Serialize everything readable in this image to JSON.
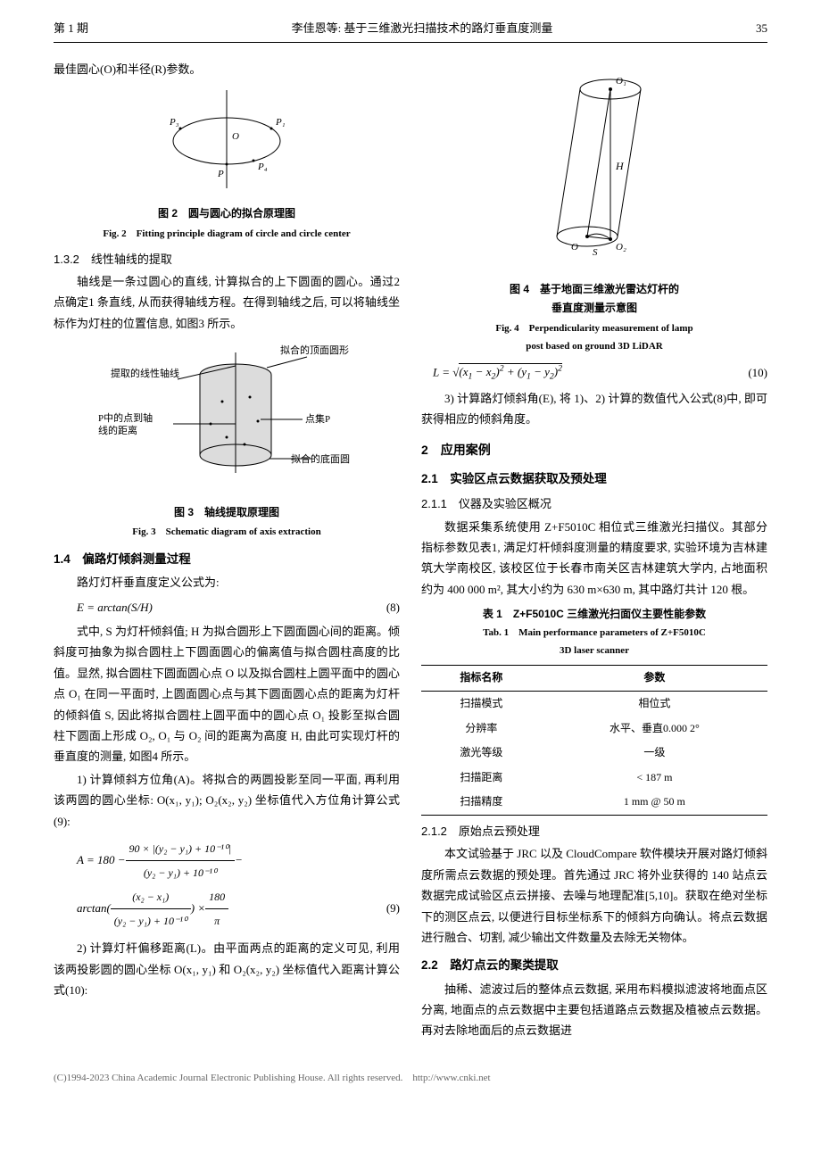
{
  "header": {
    "issue": "第 1 期",
    "center": "李佳恩等: 基于三维激光扫描技术的路灯垂直度测量",
    "page": "35"
  },
  "left": {
    "p_intro": "最佳圆心(O)和半径(R)参数。",
    "fig2": {
      "caption_cn": "图 2　圆与圆心的拟合原理图",
      "caption_en": "Fig. 2　Fitting principle diagram of circle and circle center",
      "labels": {
        "p3": "P₃",
        "p1": "P₁",
        "o": "O",
        "p": "P",
        "p4": "P₄"
      },
      "style": {
        "stroke": "#000000",
        "fill": "#ffffff",
        "stroke_width": 1,
        "fontsize": 11
      }
    },
    "s132_title": "1.3.2　线性轴线的提取",
    "s132_body": "轴线是一条过圆心的直线, 计算拟合的上下圆面的圆心。通过2 点确定1 条直线, 从而获得轴线方程。在得到轴线之后, 可以将轴线坐标作为灯柱的位置信息, 如图3 所示。",
    "fig3": {
      "caption_cn": "图 3　轴线提取原理图",
      "caption_en": "Fig. 3　Schematic diagram of axis extraction",
      "labels": {
        "axis_line": "提取的线性轴线",
        "top_circle": "拟合的顶面圆形",
        "p_dist": "P中的点到轴\n线的距离",
        "pointset": "点集P",
        "bottom_circle": "拟合的底面圆"
      },
      "style": {
        "cylinder_fill": "#dcdcdc",
        "stroke": "#000000",
        "stroke_width": 1,
        "fontsize": 11
      }
    },
    "s14_title": "1.4　偏路灯倾斜测量过程",
    "s14_p0": "路灯灯杆垂直度定义公式为:",
    "eq8_lhs": "E = arctan(S/H)",
    "eq8_num": "(8)",
    "s14_p1": "式中, S 为灯杆倾斜值; H 为拟合圆形上下圆面圆心间的距离。倾斜度可抽象为拟合圆柱上下圆面圆心的偏离值与拟合圆柱高度的比值。显然, 拟合圆柱下圆面圆心点 O 以及拟合圆柱上圆平面中的圆心点 O₁ 在同一平面时, 上圆面圆心点与其下圆面圆心点的距离为灯杆的倾斜值 S, 因此将拟合圆柱上圆平面中的圆心点 O₁ 投影至拟合圆柱下圆面上形成 O₂, O₁ 与 O₂ 间的距离为高度 H, 由此可实现灯杆的垂直度的测量, 如图4 所示。",
    "s14_p2": "1) 计算倾斜方位角(A)。将拟合的两圆投影至同一平面, 再利用该两圆的圆心坐标: O(x₁, y₁); O₂(x₂, y₂) 坐标值代入方位角计算公式(9):",
    "eq9": {
      "line1_pre": "A = 180 − ",
      "frac1_num": "90 × |(y₂ − y₁) + 10⁻¹⁰|",
      "frac1_den": "(y₂ − y₁) + 10⁻¹⁰",
      "line1_post": " −",
      "line2_pre": "arctan(",
      "frac2_num": "(x₂ − x₁)",
      "frac2_den": "(y₂ − y₁) + 10⁻¹⁰",
      "line2_post": ") × ",
      "frac3_num": "180",
      "frac3_den": "π",
      "num": "(9)"
    },
    "s14_p3": "2) 计算灯杆偏移距离(L)。由平面两点的距离的定义可见, 利用该两投影圆的圆心坐标 O(x₁, y₁) 和 O₂(x₂, y₂) 坐标值代入距离计算公式(10):"
  },
  "right": {
    "fig4": {
      "caption_cn": "图 4　基于地面三维激光雷达灯杆的\n垂直度测量示意图",
      "caption_en": "Fig. 4　Perpendicularity measurement of lamp\npost based on ground 3D LiDAR",
      "labels": {
        "o1": "O₁",
        "h": "H",
        "o": "O",
        "s": "S",
        "o2": "O₂"
      },
      "style": {
        "stroke": "#000000",
        "fill": "#ffffff",
        "stroke_width": 1,
        "fontsize": 11
      }
    },
    "eq10_lhs": "L = √((x₁ − x₂)² + (y₁ − y₂)²)",
    "eq10_num": "(10)",
    "s14_p4": "3) 计算路灯倾斜角(E), 将 1)、2) 计算的数值代入公式(8)中, 即可获得相应的倾斜角度。",
    "s2_title": "2　应用案例",
    "s21_title": "2.1　实验区点云数据获取及预处理",
    "s211_title": "2.1.1　仪器及实验区概况",
    "s211_body": "数据采集系统使用 Z+F5010C 相位式三维激光扫描仪。其部分指标参数见表1, 满足灯杆倾斜度测量的精度要求, 实验环境为吉林建筑大学南校区, 该校区位于长春市南关区吉林建筑大学内, 占地面积约为 400 000 m², 其大小约为 630 m×630 m, 其中路灯共计 120 根。",
    "tab1": {
      "caption_cn": "表 1　Z+F5010C 三维激光扫面仪主要性能参数",
      "caption_en": "Tab. 1　Main performance parameters of Z+F5010C\n3D laser scanner",
      "columns": [
        "指标名称",
        "参数"
      ],
      "rows": [
        [
          "扫描模式",
          "相位式"
        ],
        [
          "分辨率",
          "水平、垂直0.000 2°"
        ],
        [
          "激光等级",
          "一级"
        ],
        [
          "扫描距离",
          "< 187 m"
        ],
        [
          "扫描精度",
          "1 mm @ 50 m"
        ]
      ],
      "style": {
        "fontsize": 12,
        "border_color": "#000000"
      }
    },
    "s212_title": "2.1.2　原始点云预处理",
    "s212_body": "本文试验基于 JRC 以及 CloudCompare 软件模块开展对路灯倾斜度所需点云数据的预处理。首先通过 JRC 将外业获得的 140 站点云数据完成试验区点云拼接、去噪与地理配准[5,10]。获取在绝对坐标下的测区点云, 以便进行目标坐标系下的倾斜方向确认。将点云数据进行融合、切割, 减少输出文件数量及去除无关物体。",
    "s22_title": "2.2　路灯点云的聚类提取",
    "s22_body": "抽稀、滤波过后的整体点云数据, 采用布料模拟滤波将地面点区分离, 地面点的点云数据中主要包括道路点云数据及植被点云数据。再对去除地面后的点云数据进"
  },
  "footer": "(C)1994-2023 China Academic Journal Electronic Publishing House. All rights reserved.　http://www.cnki.net"
}
